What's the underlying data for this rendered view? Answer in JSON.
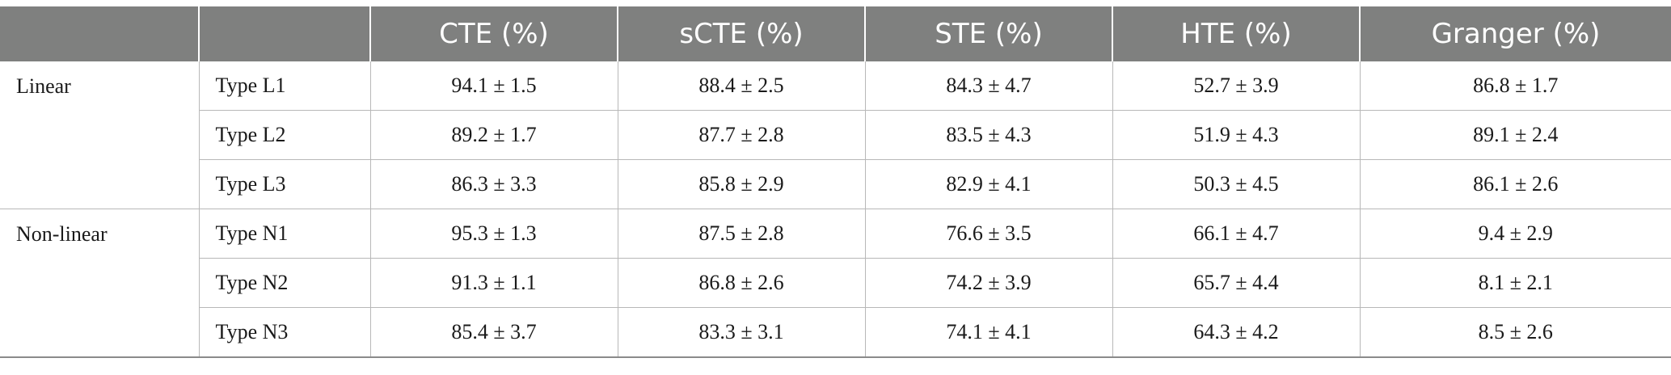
{
  "table": {
    "headers": [
      "",
      "",
      "CTE (%)",
      "sCTE (%)",
      "STE (%)",
      "HTE (%)",
      "Granger (%)"
    ],
    "groups": [
      {
        "label": "Linear",
        "rows": [
          {
            "type": "Type L1",
            "values": [
              "94.1 ± 1.5",
              "88.4 ± 2.5",
              "84.3 ± 4.7",
              "52.7 ± 3.9",
              "86.8 ± 1.7"
            ]
          },
          {
            "type": "Type L2",
            "values": [
              "89.2 ± 1.7",
              "87.7 ± 2.8",
              "83.5 ± 4.3",
              "51.9 ± 4.3",
              "89.1 ± 2.4"
            ]
          },
          {
            "type": "Type L3",
            "values": [
              "86.3 ± 3.3",
              "85.8 ± 2.9",
              "82.9 ± 4.1",
              "50.3 ± 4.5",
              "86.1 ± 2.6"
            ]
          }
        ]
      },
      {
        "label": "Non-linear",
        "rows": [
          {
            "type": "Type N1",
            "values": [
              "95.3 ± 1.3",
              "87.5 ± 2.8",
              "76.6 ± 3.5",
              "66.1 ± 4.7",
              "9.4 ± 2.9"
            ]
          },
          {
            "type": "Type N2",
            "values": [
              "91.3 ± 1.1",
              "86.8 ± 2.6",
              "74.2 ± 3.9",
              "65.7 ± 4.4",
              "8.1 ± 2.1"
            ]
          },
          {
            "type": "Type N3",
            "values": [
              "85.4 ± 3.7",
              "83.3 ± 3.1",
              "74.1 ± 4.1",
              "64.3 ± 4.2",
              "8.5 ± 2.6"
            ]
          }
        ]
      }
    ]
  },
  "colors": {
    "header_bg": "#7f807f",
    "header_text": "#ffffff",
    "grid": "#b8b8b8"
  }
}
